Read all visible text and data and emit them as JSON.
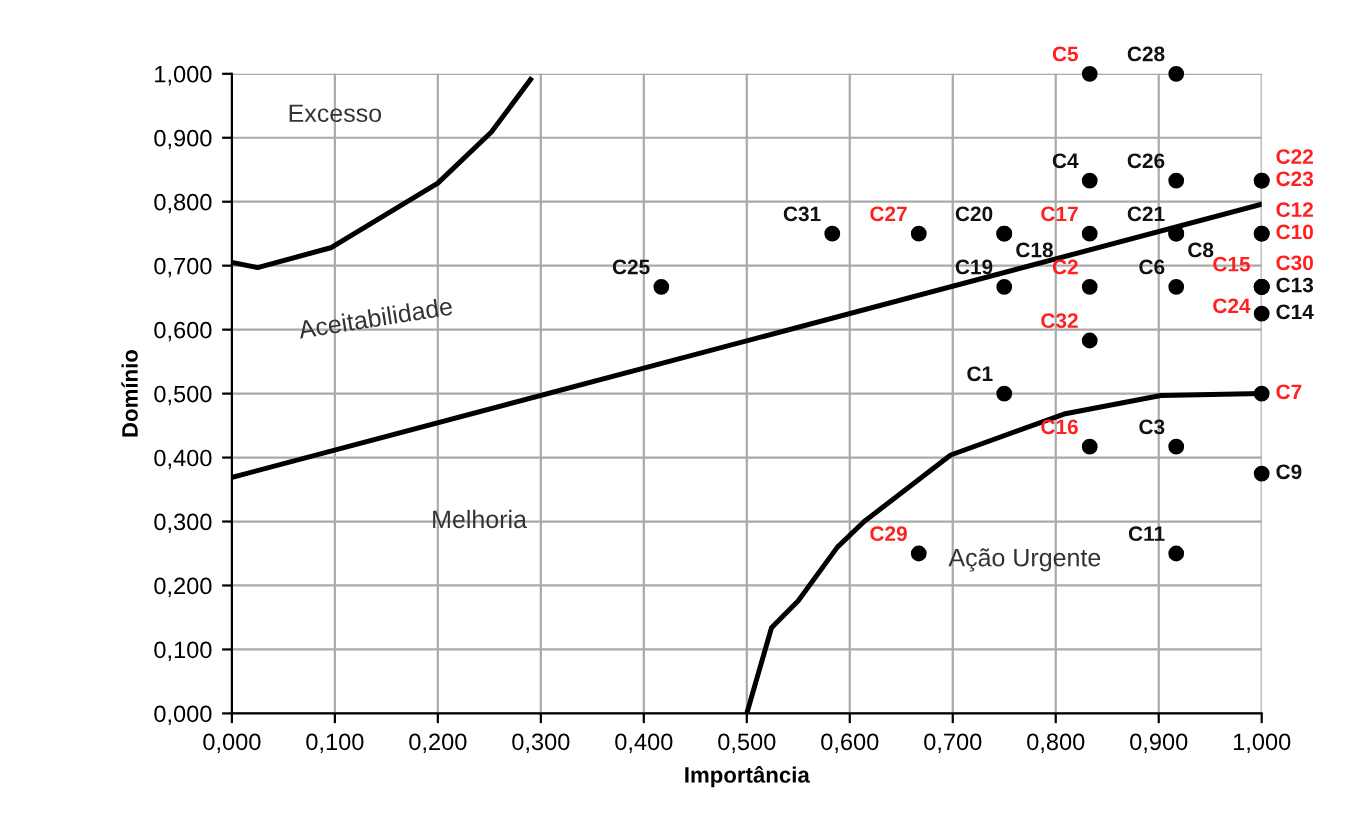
{
  "chart_data": {
    "type": "scatter",
    "xlabel": "Importância",
    "ylabel": "Domínio",
    "xlim": [
      0,
      1.0
    ],
    "ylim": [
      0,
      1.0
    ],
    "xticks": [
      {
        "value": 0,
        "label": "0,000"
      },
      {
        "value": 0.1,
        "label": "0,100"
      },
      {
        "value": 0.2,
        "label": "0,200"
      },
      {
        "value": 0.3,
        "label": "0,300"
      },
      {
        "value": 0.4,
        "label": "0,400"
      },
      {
        "value": 0.5,
        "label": "0,500"
      },
      {
        "value": 0.6,
        "label": "0,600"
      },
      {
        "value": 0.7,
        "label": "0,700"
      },
      {
        "value": 0.8,
        "label": "0,800"
      },
      {
        "value": 0.9,
        "label": "0,900"
      },
      {
        "value": 1.0,
        "label": "1,000"
      }
    ],
    "yticks": [
      {
        "value": 0,
        "label": "0,000"
      },
      {
        "value": 0.1,
        "label": "0,100"
      },
      {
        "value": 0.2,
        "label": "0,200"
      },
      {
        "value": 0.3,
        "label": "0,300"
      },
      {
        "value": 0.4,
        "label": "0,400"
      },
      {
        "value": 0.5,
        "label": "0,500"
      },
      {
        "value": 0.6,
        "label": "0,600"
      },
      {
        "value": 0.7,
        "label": "0,700"
      },
      {
        "value": 0.8,
        "label": "0,800"
      },
      {
        "value": 0.9,
        "label": "0,900"
      },
      {
        "value": 1.0,
        "label": "1,000"
      }
    ],
    "grid": true,
    "legend": false,
    "marker": "circle",
    "series": [
      {
        "type": "scatter",
        "color": "#000000",
        "x": [
          0.917,
          0.833,
          0.917,
          0.583,
          0.75,
          0.75,
          0.917,
          0.917,
          1.0,
          0.75,
          0.917,
          1.0,
          0.75,
          0.917,
          1.0,
          0.917,
          0.417
        ],
        "values": [
          1.0,
          0.833,
          0.833,
          0.75,
          0.75,
          0.75,
          0.75,
          0.75,
          0.667,
          0.667,
          0.667,
          0.625,
          0.5,
          0.417,
          0.375,
          0.25,
          0.667
        ],
        "value_labels": [
          "C28",
          "C4",
          "C26",
          "C31",
          "C20",
          "C18",
          "C21",
          "C8",
          "C13",
          "C19",
          "C6",
          "C14",
          "C1",
          "C3",
          "C9",
          "C11",
          "C25"
        ]
      },
      {
        "type": "scatter",
        "color": "#000000",
        "x": [
          0.833,
          0.667,
          0.833,
          1.0,
          1.0,
          1.0,
          1.0,
          0.833,
          1.0,
          1.0,
          1.0,
          0.833,
          1.0,
          0.833,
          0.667
        ],
        "values": [
          1.0,
          0.75,
          0.75,
          0.833,
          0.833,
          0.75,
          0.75,
          0.667,
          0.667,
          0.667,
          0.667,
          0.583,
          0.5,
          0.417,
          0.25
        ],
        "value_labels": [
          "C5",
          "C27",
          "C17",
          "C23",
          "C22",
          "C10",
          "C12",
          "C2",
          "C30",
          "C15",
          "C24",
          "C32",
          "C7",
          "C16",
          "C29"
        ]
      },
      {
        "type": "line",
        "color": "#000000",
        "marker": "none",
        "x": [
          0,
          1.0
        ],
        "values": [
          0.369,
          0.796
        ]
      },
      {
        "type": "line",
        "color": "#000000",
        "marker": "none",
        "x": [
          0,
          0.025,
          0.096,
          0.2,
          0.252,
          0.29
        ],
        "values": [
          0.705,
          0.697,
          0.728,
          0.829,
          0.909,
          0.991
        ]
      },
      {
        "type": "line",
        "color": "#000000",
        "marker": "none",
        "x": [
          0.5,
          0.524,
          0.55,
          0.588,
          0.614,
          0.698,
          0.808,
          0.902,
          1.0
        ],
        "values": [
          0,
          0.134,
          0.176,
          0.26,
          0.3,
          0.404,
          0.468,
          0.497,
          0.5
        ]
      }
    ],
    "annotations": [
      "Excesso",
      "Aceitabilidade",
      "Melhoria",
      "Ação Urgente"
    ]
  }
}
